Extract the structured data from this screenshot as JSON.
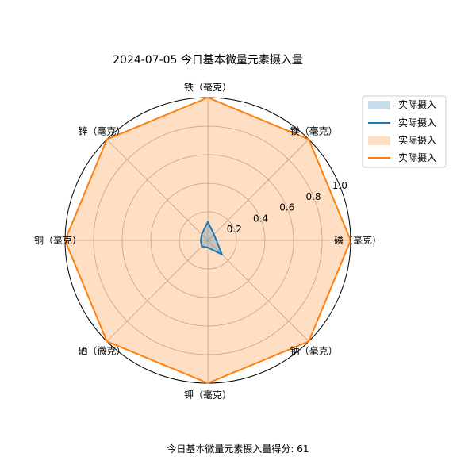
{
  "chart_data": {
    "type": "radar",
    "title": "2024-07-05 今日基本微量元素摄入量",
    "axes": [
      "磷（毫克）",
      "镁（毫克）",
      "铁（毫克）",
      "锌（毫克）",
      "铜（毫克）",
      "硒（微克）",
      "钾（毫克）",
      "钠（毫克）"
    ],
    "rlim": [
      0,
      1.0
    ],
    "rticks": [
      "0.2",
      "0.4",
      "0.6",
      "0.8",
      "1.0"
    ],
    "rtick_values": [
      0.2,
      0.4,
      0.6,
      0.8,
      1.0
    ],
    "grid": true,
    "series": [
      {
        "name": "实际摄入",
        "values": [
          0.06,
          0.06,
          0.13,
          0.06,
          0.05,
          0.06,
          0.05,
          0.14
        ],
        "color": "#1f77b4",
        "fill": true
      },
      {
        "name": "实际摄入",
        "values": [
          1.0,
          1.0,
          1.0,
          1.0,
          1.0,
          1.0,
          1.0,
          1.0
        ],
        "color": "#ff7f0e",
        "fill": true
      }
    ],
    "legend": {
      "position": "top-right",
      "entries": [
        "实际摄入",
        "实际摄入",
        "实际摄入",
        "实际摄入"
      ]
    }
  },
  "footer": {
    "score_text": "今日基本微量元素摄入量得分: 61"
  }
}
